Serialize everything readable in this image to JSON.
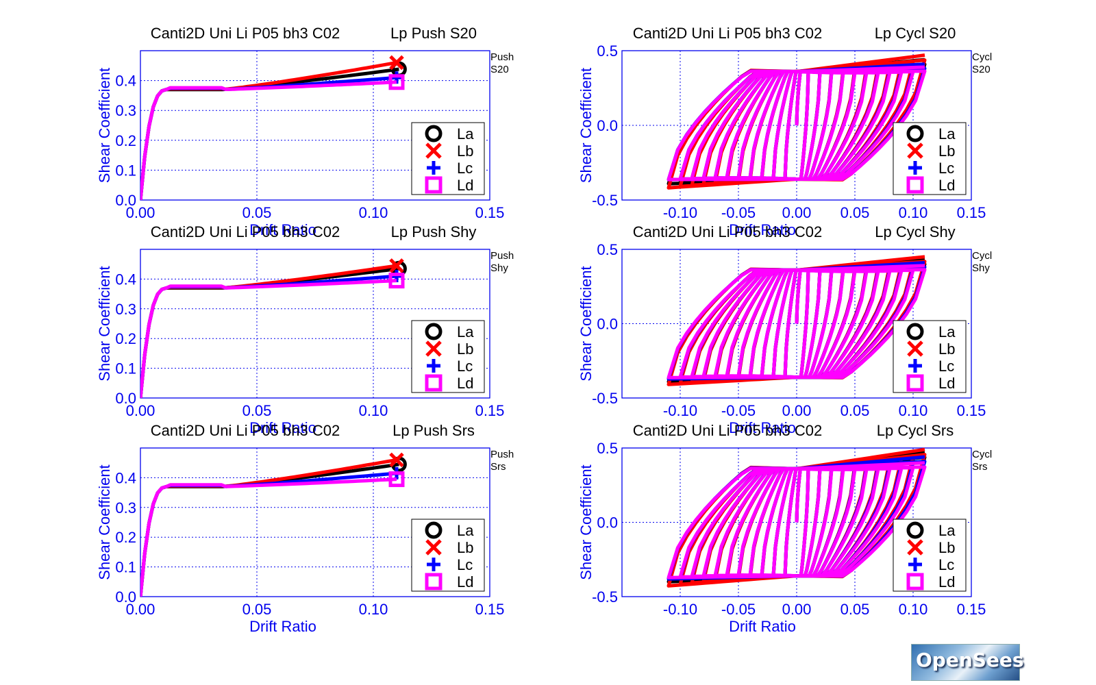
{
  "chart_data": [
    {
      "type": "line",
      "title_left": "Canti2D Uni Li P05 bh3 C02",
      "title_right": "Lp Push S20",
      "side_label": [
        "Push",
        "S20"
      ],
      "xlabel": "Drift Ratio",
      "ylabel": "Shear Coefficient",
      "xlim": [
        0,
        0.15
      ],
      "ylim": [
        0,
        0.5
      ],
      "xticks": [
        "0.00",
        "0.05",
        "0.10",
        "0.15"
      ],
      "yticks": [
        "0.0",
        "0.1",
        "0.2",
        "0.3",
        "0.4"
      ],
      "grid": true,
      "legend": "bottom-right",
      "series": [
        {
          "name": "La",
          "color": "#000000",
          "marker": "circle",
          "end": [
            0.111,
            0.438
          ]
        },
        {
          "name": "Lb",
          "color": "#ff0000",
          "marker": "x",
          "end": [
            0.11,
            0.46
          ]
        },
        {
          "name": "Lc",
          "color": "#0000ff",
          "marker": "plus",
          "end": [
            0.11,
            0.41
          ]
        },
        {
          "name": "Ld",
          "color": "#ff00ff",
          "marker": "square",
          "end": [
            0.11,
            0.395
          ]
        }
      ]
    },
    {
      "type": "line",
      "title_left": "Canti2D Uni Li P05 bh3 C02",
      "title_right": "Lp Push Shy",
      "side_label": [
        "Push",
        "Shy"
      ],
      "xlabel": "Drift Ratio",
      "ylabel": "Shear Coefficient",
      "xlim": [
        0,
        0.15
      ],
      "ylim": [
        0,
        0.5
      ],
      "xticks": [
        "0.00",
        "0.05",
        "0.10",
        "0.15"
      ],
      "yticks": [
        "0.0",
        "0.1",
        "0.2",
        "0.3",
        "0.4"
      ],
      "grid": true,
      "legend": "bottom-right",
      "series": [
        {
          "name": "La",
          "color": "#000000",
          "marker": "circle",
          "end": [
            0.111,
            0.435
          ]
        },
        {
          "name": "Lb",
          "color": "#ff0000",
          "marker": "x",
          "end": [
            0.11,
            0.445
          ]
        },
        {
          "name": "Lc",
          "color": "#0000ff",
          "marker": "plus",
          "end": [
            0.11,
            0.41
          ]
        },
        {
          "name": "Ld",
          "color": "#ff00ff",
          "marker": "square",
          "end": [
            0.11,
            0.395
          ]
        }
      ]
    },
    {
      "type": "line",
      "title_left": "Canti2D Uni Li P05 bh3 C02",
      "title_right": "Lp Push Srs",
      "side_label": [
        "Push",
        "Srs"
      ],
      "xlabel": "Drift Ratio",
      "ylabel": "Shear Coefficient",
      "xlim": [
        0,
        0.15
      ],
      "ylim": [
        0,
        0.5
      ],
      "xticks": [
        "0.00",
        "0.05",
        "0.10",
        "0.15"
      ],
      "yticks": [
        "0.0",
        "0.1",
        "0.2",
        "0.3",
        "0.4"
      ],
      "grid": true,
      "legend": "bottom-right",
      "series": [
        {
          "name": "La",
          "color": "#000000",
          "marker": "circle",
          "end": [
            0.111,
            0.445
          ]
        },
        {
          "name": "Lb",
          "color": "#ff0000",
          "marker": "x",
          "end": [
            0.11,
            0.46
          ]
        },
        {
          "name": "Lc",
          "color": "#0000ff",
          "marker": "plus",
          "end": [
            0.11,
            0.415
          ]
        },
        {
          "name": "Ld",
          "color": "#ff00ff",
          "marker": "square",
          "end": [
            0.11,
            0.395
          ]
        }
      ]
    },
    {
      "type": "line",
      "title_left": "Canti2D Uni Li P05 bh3 C02",
      "title_right": "Lp Cycl S20",
      "side_label": [
        "Cycl",
        "S20"
      ],
      "xlabel": "Drift Ratio",
      "ylabel": "Shear Coefficient",
      "xlim": [
        -0.15,
        0.15
      ],
      "ylim": [
        -0.5,
        0.5
      ],
      "xticks": [
        "-0.10",
        "-0.05",
        "0.00",
        "0.05",
        "0.10",
        "0.15"
      ],
      "yticks": [
        "-0.5",
        "0.0",
        "0.5"
      ],
      "grid": true,
      "legend": "bottom-right",
      "series": [
        {
          "name": "La",
          "color": "#000000",
          "marker": "circle",
          "peak_pos": 0.44,
          "peak_neg": -0.42
        },
        {
          "name": "Lb",
          "color": "#ff0000",
          "marker": "x",
          "peak_pos": 0.47,
          "peak_neg": -0.45
        },
        {
          "name": "Lc",
          "color": "#0000ff",
          "marker": "plus",
          "peak_pos": 0.41,
          "peak_neg": -0.39
        },
        {
          "name": "Ld",
          "color": "#ff00ff",
          "marker": "square",
          "peak_pos": 0.39,
          "peak_neg": -0.39
        }
      ]
    },
    {
      "type": "line",
      "title_left": "Canti2D Uni Li P05 bh3 C02",
      "title_right": "Lp Cycl Shy",
      "side_label": [
        "Cycl",
        "Shy"
      ],
      "xlabel": "Drift Ratio",
      "ylabel": "Shear Coefficient",
      "xlim": [
        -0.15,
        0.15
      ],
      "ylim": [
        -0.5,
        0.5
      ],
      "xticks": [
        "-0.10",
        "-0.05",
        "0.00",
        "0.05",
        "0.10",
        "0.15"
      ],
      "yticks": [
        "-0.5",
        "0.0",
        "0.5"
      ],
      "grid": true,
      "legend": "bottom-right",
      "series": [
        {
          "name": "La",
          "color": "#000000",
          "marker": "circle",
          "peak_pos": 0.43,
          "peak_neg": -0.42
        },
        {
          "name": "Lb",
          "color": "#ff0000",
          "marker": "x",
          "peak_pos": 0.45,
          "peak_neg": -0.44
        },
        {
          "name": "Lc",
          "color": "#0000ff",
          "marker": "plus",
          "peak_pos": 0.41,
          "peak_neg": -0.4
        },
        {
          "name": "Ld",
          "color": "#ff00ff",
          "marker": "square",
          "peak_pos": 0.39,
          "peak_neg": -0.39
        }
      ]
    },
    {
      "type": "line",
      "title_left": "Canti2D Uni Li P05 bh3 C02",
      "title_right": "Lp Cycl Srs",
      "side_label": [
        "Cycl",
        "Srs"
      ],
      "xlabel": "Drift Ratio",
      "ylabel": "Shear Coefficient",
      "xlim": [
        -0.15,
        0.15
      ],
      "ylim": [
        -0.5,
        0.5
      ],
      "xticks": [
        "-0.10",
        "-0.05",
        "0.00",
        "0.05",
        "0.10",
        "0.15"
      ],
      "yticks": [
        "-0.5",
        "0.0",
        "0.5"
      ],
      "grid": true,
      "legend": "bottom-right",
      "series": [
        {
          "name": "La",
          "color": "#000000",
          "marker": "circle",
          "peak_pos": 0.47,
          "peak_neg": -0.43
        },
        {
          "name": "Lb",
          "color": "#ff0000",
          "marker": "x",
          "peak_pos": 0.49,
          "peak_neg": -0.46
        },
        {
          "name": "Lc",
          "color": "#0000ff",
          "marker": "plus",
          "peak_pos": 0.44,
          "peak_neg": -0.41
        },
        {
          "name": "Ld",
          "color": "#ff00ff",
          "marker": "square",
          "peak_pos": 0.4,
          "peak_neg": -0.4
        }
      ]
    }
  ],
  "logo": {
    "text": "OpenSees"
  }
}
